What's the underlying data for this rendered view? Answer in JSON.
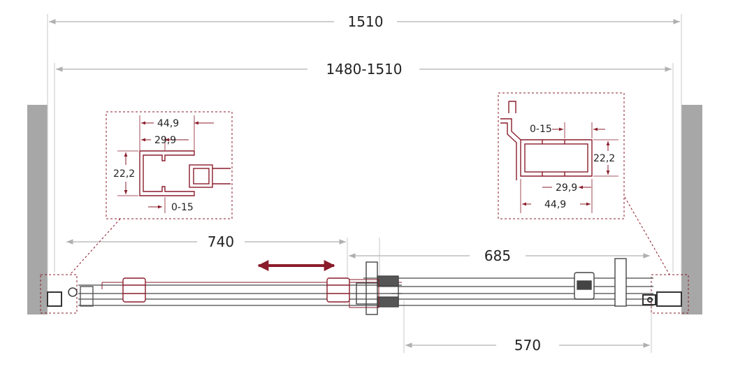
{
  "dimensions": {
    "overall_width": "1510",
    "installation_range": "1480-1510",
    "left_opening": "740",
    "right_span": "685",
    "fixed_panel": "570"
  },
  "left_detail": {
    "outer_width": "44,9",
    "inner_width": "29,9",
    "height": "22,2",
    "adjust_range": "0-15"
  },
  "right_detail": {
    "adjust_range": "0-15",
    "height": "22,2",
    "inner_width": "29,9",
    "outer_width": "44,9"
  },
  "colors": {
    "accent": "#8a1c2b",
    "wall": "#a7a7a7",
    "line": "#b5b5b5",
    "drawing": "#555555"
  }
}
